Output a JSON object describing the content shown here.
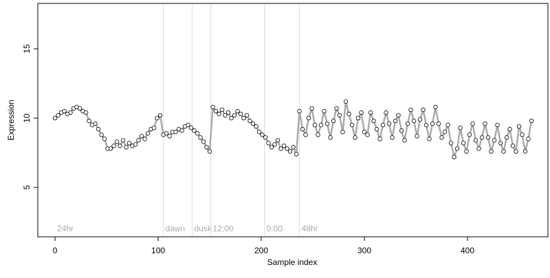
{
  "chart_data": {
    "type": "line",
    "xlabel": "Sample index",
    "ylabel": "Expression",
    "xlim": [
      -16.7,
      478
    ],
    "ylim": [
      1.44,
      18.27
    ],
    "xticks": [
      0,
      100,
      200,
      300,
      400
    ],
    "yticks": [
      5,
      10,
      15
    ],
    "grid": false,
    "line_color": "#aaaaaa",
    "point_color": "#ffffff",
    "marker_line_color": "#dddddd",
    "annotation_color": "#aaaaaa",
    "annotations": [
      {
        "x": 0,
        "label": "24hr"
      },
      {
        "x": 105,
        "label": "dawn"
      },
      {
        "x": 133,
        "label": "dusk"
      },
      {
        "x": 151,
        "label": "12:00"
      },
      {
        "x": 203,
        "label": "0:00"
      },
      {
        "x": 237,
        "label": "48hr"
      }
    ],
    "x": [
      0,
      3,
      6,
      9,
      12,
      15,
      18,
      21,
      24,
      27,
      30,
      33,
      36,
      39,
      42,
      45,
      48,
      51,
      54,
      57,
      60,
      63,
      66,
      69,
      72,
      75,
      78,
      81,
      84,
      87,
      90,
      93,
      96,
      99,
      102,
      105,
      108,
      111,
      114,
      117,
      120,
      123,
      126,
      129,
      132,
      135,
      138,
      141,
      144,
      147,
      150,
      153,
      156,
      159,
      162,
      165,
      168,
      171,
      174,
      177,
      180,
      183,
      186,
      189,
      192,
      195,
      198,
      201,
      204,
      207,
      210,
      213,
      216,
      219,
      222,
      225,
      228,
      231,
      234,
      237,
      240,
      243,
      246,
      249,
      252,
      255,
      258,
      261,
      264,
      267,
      270,
      273,
      276,
      279,
      282,
      285,
      288,
      291,
      294,
      297,
      300,
      303,
      306,
      309,
      312,
      315,
      318,
      321,
      324,
      327,
      330,
      333,
      336,
      339,
      342,
      345,
      348,
      351,
      354,
      357,
      360,
      363,
      366,
      369,
      372,
      375,
      378,
      381,
      384,
      387,
      390,
      393,
      396,
      399,
      402,
      405,
      408,
      411,
      414,
      417,
      420,
      423,
      426,
      429,
      432,
      435,
      438,
      441,
      444,
      447,
      450,
      453,
      456,
      459,
      462
    ],
    "values": [
      10.0,
      10.2,
      10.4,
      10.5,
      10.3,
      10.4,
      10.7,
      10.8,
      10.7,
      10.5,
      10.4,
      9.8,
      9.5,
      9.6,
      9.2,
      8.8,
      8.5,
      7.8,
      7.8,
      8.0,
      8.3,
      8.0,
      8.4,
      7.9,
      8.2,
      8.0,
      8.1,
      8.4,
      8.7,
      8.5,
      8.9,
      9.2,
      9.3,
      10.0,
      10.2,
      8.8,
      8.9,
      8.7,
      9.0,
      9.0,
      9.2,
      9.1,
      9.4,
      9.5,
      9.3,
      9.1,
      8.9,
      8.6,
      8.3,
      7.9,
      7.6,
      10.8,
      10.5,
      10.3,
      10.6,
      10.2,
      10.4,
      10.0,
      10.2,
      10.5,
      10.3,
      10.0,
      10.2,
      9.8,
      9.6,
      9.4,
      9.0,
      8.8,
      8.6,
      8.2,
      7.9,
      8.1,
      8.4,
      7.8,
      8.0,
      7.8,
      7.6,
      7.9,
      7.4,
      10.5,
      9.2,
      8.8,
      10.0,
      10.7,
      9.5,
      8.8,
      9.5,
      10.5,
      9.6,
      8.6,
      9.8,
      10.7,
      10.2,
      9.0,
      11.2,
      10.3,
      9.5,
      8.6,
      10.0,
      10.4,
      9.0,
      8.8,
      10.4,
      9.8,
      9.2,
      8.5,
      9.5,
      10.4,
      9.6,
      8.6,
      9.8,
      10.2,
      9.1,
      8.4,
      9.6,
      10.6,
      9.8,
      8.7,
      9.9,
      10.6,
      9.5,
      8.5,
      9.6,
      10.8,
      9.6,
      8.6,
      9.0,
      9.5,
      8.2,
      7.2,
      7.8,
      9.3,
      8.2,
      7.6,
      8.8,
      9.6,
      8.4,
      7.8,
      8.6,
      9.6,
      8.6,
      7.6,
      8.4,
      9.5,
      8.2,
      7.6,
      8.6,
      9.2,
      8.0,
      7.6,
      9.4,
      8.8,
      7.6,
      8.5,
      9.8
    ]
  }
}
